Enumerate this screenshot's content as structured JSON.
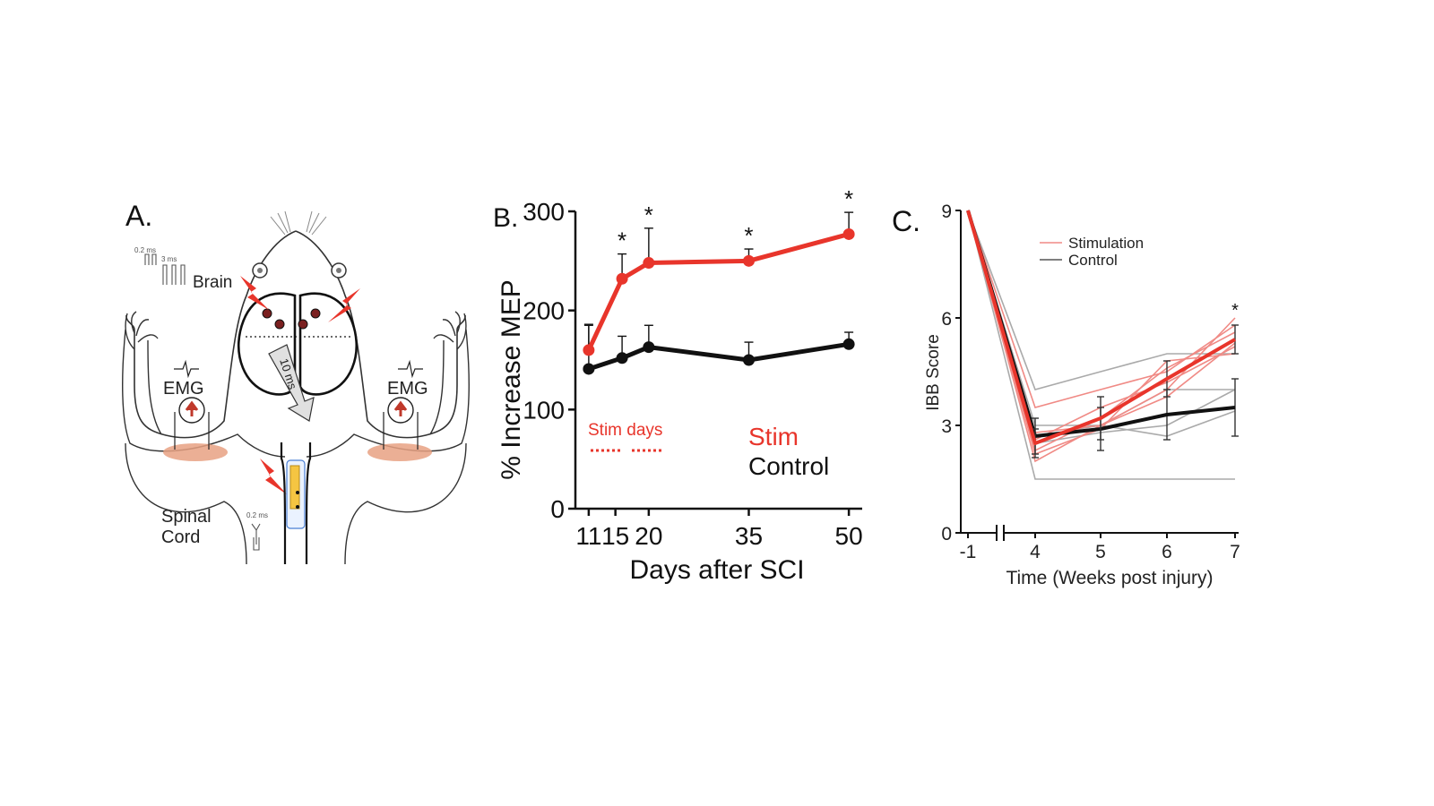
{
  "colors": {
    "stim": "#e8352b",
    "control": "#111111",
    "stim_light": "#f08a85",
    "control_light": "#aaaaaa",
    "muscle": "#e8a182",
    "outline": "#222222"
  },
  "panel_a": {
    "label": "A.",
    "brain_label": "Brain",
    "emg_left": "EMG",
    "emg_right": "EMG",
    "spinal_label_1": "Spinal",
    "spinal_label_2": "Cord",
    "pulse_brain_width": "0.2 ms",
    "pulse_brain_interval": "3 ms",
    "pulse_cord_width": "0.2 ms",
    "delay_label": "10 ms"
  },
  "chart_data": [
    {
      "type": "line",
      "panel_label": "B.",
      "xlabel": "Days after SCI",
      "ylabel": "% Increase MEP",
      "xlim": [
        9,
        52
      ],
      "ylim": [
        0,
        300
      ],
      "x_ticks": [
        11,
        15,
        20,
        35,
        50
      ],
      "x_tick_labels": [
        "11",
        "15",
        "20",
        "35",
        "50"
      ],
      "y_ticks": [
        0,
        100,
        200,
        300
      ],
      "y_tick_labels": [
        "0",
        "100",
        "200",
        "300"
      ],
      "series": [
        {
          "name": "Stim",
          "x": [
            11,
            16,
            20,
            35,
            50
          ],
          "values": [
            160,
            232,
            248,
            250,
            277
          ],
          "err": [
            25,
            25,
            35,
            12,
            22
          ],
          "sig": [
            false,
            true,
            true,
            true,
            true
          ]
        },
        {
          "name": "Control",
          "x": [
            11,
            16,
            20,
            35,
            50
          ],
          "values": [
            141,
            152,
            163,
            150,
            166
          ],
          "err": [
            45,
            22,
            22,
            18,
            12
          ],
          "sig": [
            false,
            false,
            false,
            false,
            false
          ]
        }
      ],
      "annotations": {
        "sig_marker": "*",
        "stim_days_label": "Stim days"
      },
      "legend": [
        "Stim",
        "Control"
      ],
      "legend_placement": "bottom-right"
    },
    {
      "type": "line",
      "panel_label": "C.",
      "xlabel": "Time (Weeks post injury)",
      "ylabel": "IBB Score",
      "x_categories": [
        "-1",
        "4",
        "5",
        "6",
        "7"
      ],
      "ylim": [
        0,
        9
      ],
      "y_ticks": [
        0,
        3,
        6,
        9
      ],
      "y_tick_labels": [
        "0",
        "3",
        "6",
        "9"
      ],
      "axis_break": true,
      "legend": [
        "Stimulation",
        "Control"
      ],
      "legend_placement": "top-center",
      "sig_marker": "*",
      "mean_series": [
        {
          "name": "Stimulation",
          "values": [
            9,
            2.5,
            3.2,
            4.3,
            5.4
          ],
          "err": [
            0,
            0.4,
            0.6,
            0.5,
            0.4
          ]
        },
        {
          "name": "Control",
          "values": [
            9,
            2.7,
            2.9,
            3.3,
            3.5
          ],
          "err": [
            0,
            0.5,
            0.6,
            0.7,
            0.8
          ]
        }
      ],
      "individual_series": {
        "Stimulation": [
          [
            9,
            2.0,
            3.0,
            4.0,
            6.0
          ],
          [
            9,
            2.3,
            3.2,
            4.6,
            5.6
          ],
          [
            9,
            2.6,
            3.5,
            4.2,
            5.2
          ],
          [
            9,
            2.2,
            2.9,
            4.8,
            5.0
          ],
          [
            9,
            3.5,
            4.0,
            4.5,
            5.8
          ],
          [
            9,
            2.8,
            3.0,
            3.8,
            5.3
          ]
        ],
        "Control": [
          [
            9,
            4.0,
            4.5,
            5.0,
            5.0
          ],
          [
            9,
            1.5,
            1.5,
            1.5,
            1.5
          ],
          [
            9,
            3.0,
            3.0,
            2.7,
            3.4
          ],
          [
            9,
            2.7,
            3.0,
            4.0,
            4.0
          ],
          [
            9,
            2.5,
            2.8,
            3.0,
            4.0
          ]
        ]
      }
    }
  ]
}
